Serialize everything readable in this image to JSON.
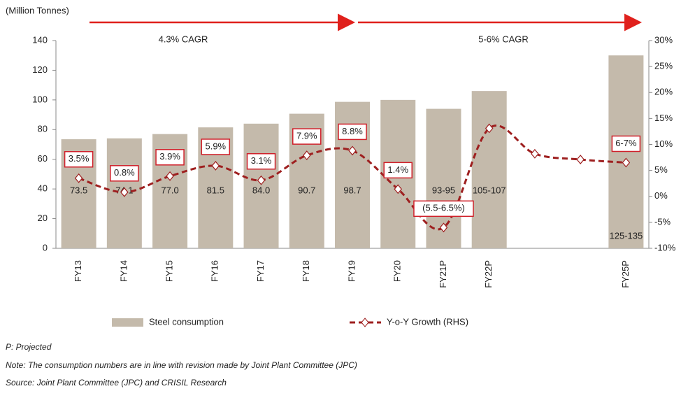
{
  "chart_data": {
    "type": "bar",
    "unit_label": "(Million  Tonnes)",
    "annotations": [
      "4.3% CAGR",
      "5-6% CAGR"
    ],
    "categories": [
      "FY13",
      "FY14",
      "FY15",
      "FY16",
      "FY17",
      "FY18",
      "FY19",
      "FY20",
      "FY21P",
      "FY22P",
      null,
      null,
      "FY25P"
    ],
    "series": [
      {
        "name": "Steel consumption",
        "type": "bar",
        "color": "#c4baab",
        "values": [
          73.5,
          74.1,
          77.0,
          81.5,
          84.0,
          90.7,
          98.7,
          100,
          94,
          106,
          null,
          null,
          130
        ],
        "value_labels": [
          "73.5",
          "74.1",
          "77.0",
          "81.5",
          "84.0",
          "90.7",
          "98.7",
          null,
          "93-95",
          "105-107",
          null,
          null,
          "125-135"
        ]
      },
      {
        "name": "Y-o-Y Growth (RHS)",
        "type": "line",
        "axis": "y2",
        "color": "#9e1f1f",
        "values": [
          3.5,
          0.8,
          3.9,
          5.9,
          3.1,
          7.9,
          8.8,
          1.4,
          -6,
          13.1,
          8.2,
          7.1,
          6.5
        ],
        "value_labels": [
          "3.5%",
          "0.8%",
          "3.9%",
          "5.9%",
          "3.1%",
          "7.9%",
          "8.8%",
          "1.4%",
          "(5.5-6.5%)",
          null,
          null,
          null,
          "6-7%"
        ]
      }
    ],
    "ylim": [
      0,
      140
    ],
    "yticks": [
      0,
      20,
      40,
      60,
      80,
      100,
      120,
      140
    ],
    "y2lim": [
      -10,
      30
    ],
    "y2ticks": [
      {
        "value": -10,
        "label": "-10%"
      },
      {
        "value": -5,
        "label": "-5%"
      },
      {
        "value": 0,
        "label": "0%"
      },
      {
        "value": 5,
        "label": "5%"
      },
      {
        "value": 10,
        "label": "10%"
      },
      {
        "value": 15,
        "label": "15%"
      },
      {
        "value": 20,
        "label": "20%"
      },
      {
        "value": 25,
        "label": "25%"
      },
      {
        "value": 30,
        "label": "30%"
      }
    ],
    "grid": false,
    "notes": [
      "P: Projected",
      "Note: The consumption numbers are in line with revision made by Joint Plant Committee (JPC)",
      "Source: Joint Plant Committee (JPC) and CRISIL Research"
    ]
  }
}
